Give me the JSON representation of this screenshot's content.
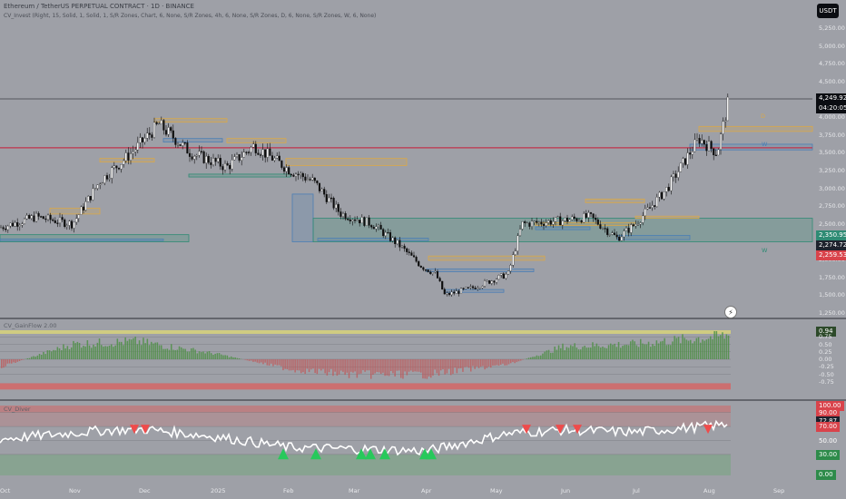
{
  "header": {
    "ticker_line": "Ethereum / TetherUS PERPETUAL CONTRACT · 1D · BINANCE",
    "indicator_line": "CV_Invest (Right, 15, Solid, 1, Solid, 1, S/R Zones, Chart, 6, None, S/R Zones, 4h, 6, None, S/R Zones, D, 6, None, S/R Zones, W, 6, None)",
    "currency_button": "USDT"
  },
  "price_axis": {
    "labels": [
      "5,250.00",
      "5,000.00",
      "4,750.00",
      "4,500.00",
      "4,000.00",
      "3,750.00",
      "3,500.00",
      "3,250.00",
      "3,000.00",
      "2,750.00",
      "2,500.00",
      "2,000.00",
      "1,750.00",
      "1,500.00",
      "1,250.00"
    ],
    "current_price": "4,249.92",
    "countdown": "04:20:05",
    "level_labels": [
      {
        "text": "2,350.95",
        "color": "#2e8b74"
      },
      {
        "text": "2,274.72",
        "color": "#1e222d"
      },
      {
        "text": "2,259.53",
        "color": "#d9434b"
      }
    ]
  },
  "zone_labels": {
    "d": "D",
    "w1": "W",
    "w2": "W"
  },
  "osc_pane": {
    "title": "CV_GainFlow 2.00",
    "labels": [
      "1.00",
      "0.94",
      "0.75",
      "0.50",
      "0.25",
      "0.00",
      "-0.25",
      "-0.50",
      "-0.75"
    ],
    "current_value": "0.94"
  },
  "rsi_pane": {
    "title": "CV_Diver",
    "labels": [
      "100.00",
      "90.00",
      "72.87",
      "70.00",
      "50.00",
      "30.00",
      "0.00"
    ],
    "current_value": "72.87"
  },
  "time_axis": {
    "labels": [
      "Oct",
      "Nov",
      "Dec",
      "2025",
      "Feb",
      "Mar",
      "Apr",
      "May",
      "Jun",
      "Jul",
      "Aug",
      "Sep"
    ]
  },
  "colors": {
    "background": "#9ea0a7",
    "candle_up": "#ffffff",
    "candle_down": "#0d0d0d",
    "resistance_zone": "#d9a84a",
    "support_zone": "#4c7fb5",
    "green_zone": "#2e8b74",
    "red_line": "#c0334b",
    "osc_positive": "#4d8f45",
    "osc_negative": "#c74a4a",
    "band_yellow": "#d8d47a",
    "band_red": "#d46666"
  },
  "chart_data": [
    {
      "type": "candlestick",
      "title": "Ethereum / TetherUS PERPETUAL CONTRACT · 1D · BINANCE",
      "x": [
        "2024-10-01",
        "2024-10-15",
        "2024-11-01",
        "2024-11-10",
        "2024-11-25",
        "2024-12-05",
        "2024-12-15",
        "2024-12-25",
        "2025-01-05",
        "2025-01-20",
        "2025-02-01",
        "2025-02-10",
        "2025-02-25",
        "2025-03-05",
        "2025-03-15",
        "2025-04-01",
        "2025-04-09",
        "2025-04-20",
        "2025-05-01",
        "2025-05-10",
        "2025-05-25",
        "2025-06-10",
        "2025-06-22",
        "2025-07-01",
        "2025-07-15",
        "2025-07-25",
        "2025-08-05",
        "2025-08-12"
      ],
      "close": [
        2450,
        2600,
        2500,
        3100,
        3500,
        3900,
        3500,
        3300,
        3600,
        3250,
        3100,
        2650,
        2500,
        2200,
        1900,
        1800,
        1500,
        1600,
        1800,
        2500,
        2550,
        2600,
        2300,
        2500,
        3000,
        3700,
        3500,
        4250
      ],
      "ylim": [
        1250,
        5250
      ],
      "levels": {
        "resistance_red": 3570
      }
    },
    {
      "type": "bar",
      "title": "CV_GainFlow 2.00",
      "x": [
        "Oct",
        "Nov",
        "Dec",
        "2025",
        "Feb",
        "Mar",
        "Apr",
        "May",
        "Jun",
        "Jul",
        "Aug"
      ],
      "values": [
        -0.3,
        0.6,
        0.7,
        0.2,
        -0.4,
        -0.6,
        -0.6,
        -0.2,
        0.5,
        0.6,
        0.94
      ],
      "ylim": [
        -0.75,
        1.0
      ]
    },
    {
      "type": "line",
      "title": "CV_Diver",
      "x": [
        "Oct",
        "Nov",
        "Dec",
        "2025",
        "Feb",
        "Mar",
        "Apr",
        "May",
        "Jun",
        "Jul",
        "Aug"
      ],
      "values": [
        52,
        64,
        66,
        55,
        40,
        38,
        35,
        60,
        65,
        62,
        72.87
      ],
      "ylim": [
        0,
        100
      ],
      "bands": [
        30,
        70
      ]
    }
  ]
}
